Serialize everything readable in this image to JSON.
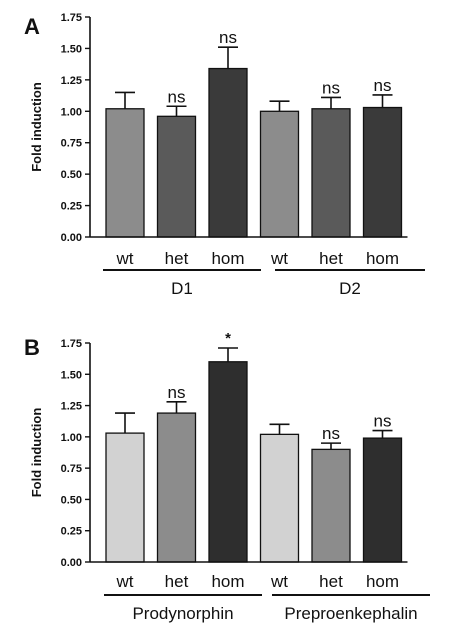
{
  "chart_data": [
    {
      "type": "bar",
      "panel_label": "A",
      "ylabel": "Fold induction",
      "ylim": [
        0,
        1.75
      ],
      "yticks": [
        "0.00",
        "0.25",
        "0.50",
        "0.75",
        "1.00",
        "1.25",
        "1.50",
        "1.75"
      ],
      "categories": [
        "wt",
        "het",
        "hom",
        "wt",
        "het",
        "hom"
      ],
      "groups": [
        {
          "label": "D1",
          "categories": [
            "wt",
            "het",
            "hom"
          ]
        },
        {
          "label": "D2",
          "categories": [
            "wt",
            "het",
            "hom"
          ]
        }
      ],
      "values": [
        1.02,
        0.96,
        1.34,
        1.0,
        1.02,
        1.03
      ],
      "errors": [
        0.13,
        0.08,
        0.17,
        0.08,
        0.09,
        0.1
      ],
      "annotations": [
        "",
        "ns",
        "ns",
        "",
        "ns",
        "ns"
      ],
      "colors": [
        "#8c8c8c",
        "#5a5a5a",
        "#3a3a3a",
        "#8c8c8c",
        "#5a5a5a",
        "#3a3a3a"
      ]
    },
    {
      "type": "bar",
      "panel_label": "B",
      "ylabel": "Fold induction",
      "ylim": [
        0,
        1.75
      ],
      "yticks": [
        "0.00",
        "0.25",
        "0.50",
        "0.75",
        "1.00",
        "1.25",
        "1.50",
        "1.75"
      ],
      "categories": [
        "wt",
        "het",
        "hom",
        "wt",
        "het",
        "hom"
      ],
      "groups": [
        {
          "label": "Prodynorphin",
          "categories": [
            "wt",
            "het",
            "hom"
          ]
        },
        {
          "label": "Preproenkephalin",
          "categories": [
            "wt",
            "het",
            "hom"
          ]
        }
      ],
      "values": [
        1.03,
        1.19,
        1.6,
        1.02,
        0.9,
        0.99
      ],
      "errors": [
        0.16,
        0.09,
        0.11,
        0.08,
        0.05,
        0.06
      ],
      "annotations": [
        "",
        "ns",
        "*",
        "",
        "ns",
        "ns"
      ],
      "colors": [
        "#d2d2d2",
        "#8c8c8c",
        "#2e2e2e",
        "#d2d2d2",
        "#8c8c8c",
        "#2e2e2e"
      ]
    }
  ]
}
